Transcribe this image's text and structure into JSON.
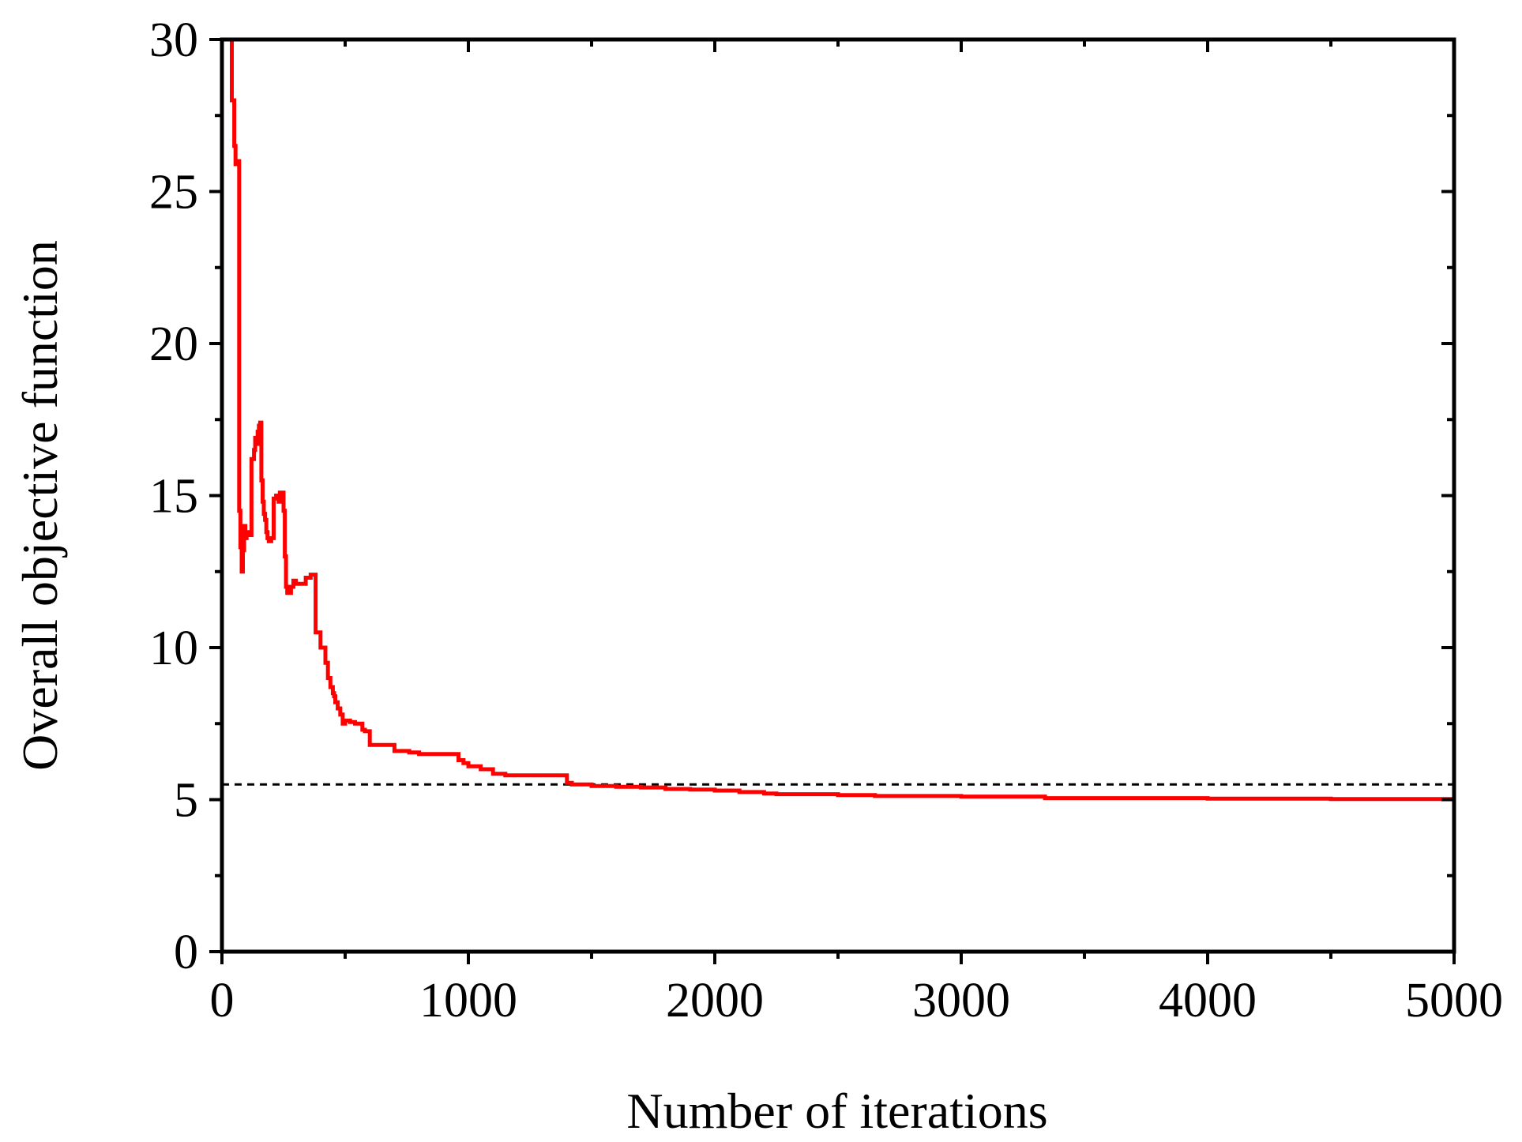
{
  "chart_data": {
    "type": "line",
    "title": "",
    "xlabel": "Number of iterations",
    "ylabel": "Overall objective function",
    "xlim": [
      0,
      5000
    ],
    "ylim": [
      0,
      30
    ],
    "x_ticks": [
      "0",
      "1000",
      "2000",
      "3000",
      "4000",
      "5000"
    ],
    "y_ticks": [
      "0",
      "5",
      "10",
      "15",
      "20",
      "25",
      "30"
    ],
    "x_tick_values": [
      0,
      1000,
      2000,
      3000,
      4000,
      5000
    ],
    "y_tick_values": [
      0,
      5,
      10,
      15,
      20,
      25,
      30
    ],
    "x_minor_step": 500,
    "y_minor_step": 2.5,
    "grid": false,
    "series": [
      {
        "color": "#ff0000",
        "x": [
          20,
          40,
          50,
          55,
          60,
          70,
          75,
          80,
          85,
          90,
          95,
          100,
          110,
          120,
          130,
          135,
          140,
          145,
          150,
          155,
          160,
          165,
          170,
          175,
          180,
          185,
          190,
          200,
          210,
          220,
          230,
          235,
          240,
          250,
          255,
          260,
          265,
          270,
          275,
          280,
          290,
          300,
          310,
          330,
          340,
          360,
          380,
          400,
          420,
          430,
          440,
          450,
          455,
          460,
          470,
          480,
          490,
          500,
          520,
          540,
          560,
          570,
          575,
          580,
          600,
          700,
          720,
          750,
          760,
          800,
          900,
          960,
          980,
          1000,
          1050,
          1100,
          1150,
          1160,
          1200,
          1300,
          1400,
          1420,
          1440,
          1500,
          1600,
          1700,
          1800,
          1900,
          2000,
          2100,
          2200,
          2250,
          2300,
          2500,
          2600,
          2650,
          2700,
          3000,
          3300,
          3340,
          3400,
          3600,
          4000,
          4500,
          5000
        ],
        "y": [
          30.5,
          28.0,
          26.5,
          25.9,
          26.0,
          14.5,
          13.3,
          12.5,
          13.2,
          14.0,
          13.6,
          13.8,
          13.7,
          16.2,
          16.5,
          16.9,
          16.7,
          17.1,
          17.3,
          17.4,
          15.5,
          14.8,
          14.4,
          14.2,
          13.8,
          13.6,
          13.5,
          13.6,
          14.9,
          15.0,
          14.8,
          15.1,
          15.1,
          14.5,
          13.0,
          12.0,
          11.8,
          11.9,
          11.8,
          12.0,
          12.2,
          12.1,
          12.1,
          12.1,
          12.3,
          12.4,
          10.5,
          10.0,
          9.5,
          9.0,
          8.7,
          8.5,
          8.4,
          8.2,
          8.0,
          7.8,
          7.5,
          7.6,
          7.55,
          7.5,
          7.5,
          7.3,
          7.3,
          7.25,
          6.8,
          6.6,
          6.6,
          6.6,
          6.55,
          6.5,
          6.5,
          6.3,
          6.2,
          6.1,
          6.0,
          5.85,
          5.8,
          5.8,
          5.8,
          5.8,
          5.55,
          5.5,
          5.5,
          5.45,
          5.42,
          5.4,
          5.35,
          5.33,
          5.3,
          5.25,
          5.2,
          5.18,
          5.18,
          5.15,
          5.15,
          5.12,
          5.12,
          5.1,
          5.1,
          5.05,
          5.05,
          5.05,
          5.03,
          5.02,
          5.0
        ]
      }
    ],
    "reference_line": {
      "y": 5.5,
      "color": "#000000",
      "style": "dashed"
    }
  }
}
